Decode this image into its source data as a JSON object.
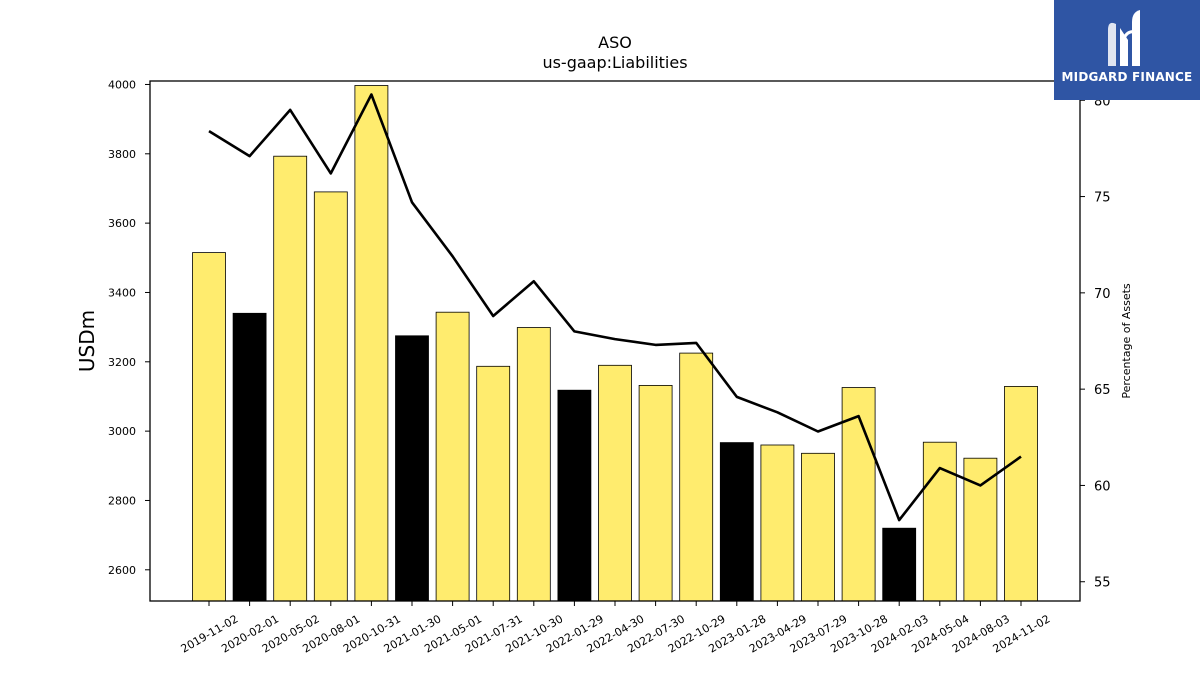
{
  "chart_data": {
    "type": "bar",
    "title": "ASO",
    "subtitle": "us-gaap:Liabilities",
    "ylabel": "USDm",
    "y2label": "Percentage of Assets",
    "ylim": [
      2510,
      4010
    ],
    "y2lim": [
      54,
      81
    ],
    "yticks": [
      2600,
      2800,
      3000,
      3200,
      3400,
      3600,
      3800,
      4000
    ],
    "y2ticks": [
      55,
      60,
      65,
      70,
      75,
      80
    ],
    "categories": [
      "2019-11-02",
      "2020-02-01",
      "2020-05-02",
      "2020-08-01",
      "2020-10-31",
      "2021-01-30",
      "2021-05-01",
      "2021-07-31",
      "2021-10-30",
      "2022-01-29",
      "2022-04-30",
      "2022-07-30",
      "2022-10-29",
      "2023-01-28",
      "2023-04-29",
      "2023-07-29",
      "2023-10-28",
      "2024-02-03",
      "2024-05-04",
      "2024-08-03",
      "2024-11-02"
    ],
    "series": [
      {
        "type": "bar",
        "values": [
          3515,
          3340,
          3793,
          3690,
          3997,
          3275,
          3343,
          3187,
          3299,
          3118,
          3190,
          3132,
          3225,
          2967,
          2960,
          2936,
          3126,
          2720,
          2968,
          2922,
          3129
        ],
        "colors": [
          "#ffec6e",
          "#000000",
          "#ffec6e",
          "#ffec6e",
          "#ffec6e",
          "#000000",
          "#ffec6e",
          "#ffec6e",
          "#ffec6e",
          "#000000",
          "#ffec6e",
          "#ffec6e",
          "#ffec6e",
          "#000000",
          "#ffec6e",
          "#ffec6e",
          "#ffec6e",
          "#000000",
          "#ffec6e",
          "#ffec6e",
          "#ffec6e"
        ]
      },
      {
        "type": "line",
        "axis": "right",
        "values": [
          78.4,
          77.1,
          79.5,
          76.2,
          80.3,
          74.7,
          71.9,
          68.8,
          70.6,
          68.0,
          67.6,
          67.3,
          67.4,
          64.6,
          63.8,
          62.8,
          63.6,
          58.2,
          60.9,
          60.0,
          61.5
        ],
        "color": "#000000"
      }
    ],
    "grid": false
  },
  "logo": {
    "text": "MIDGARD FINANCE"
  },
  "colors": {
    "bar_yellow": "#ffec6e",
    "bar_black": "#000000",
    "logo_bg": "#2f55a4"
  }
}
